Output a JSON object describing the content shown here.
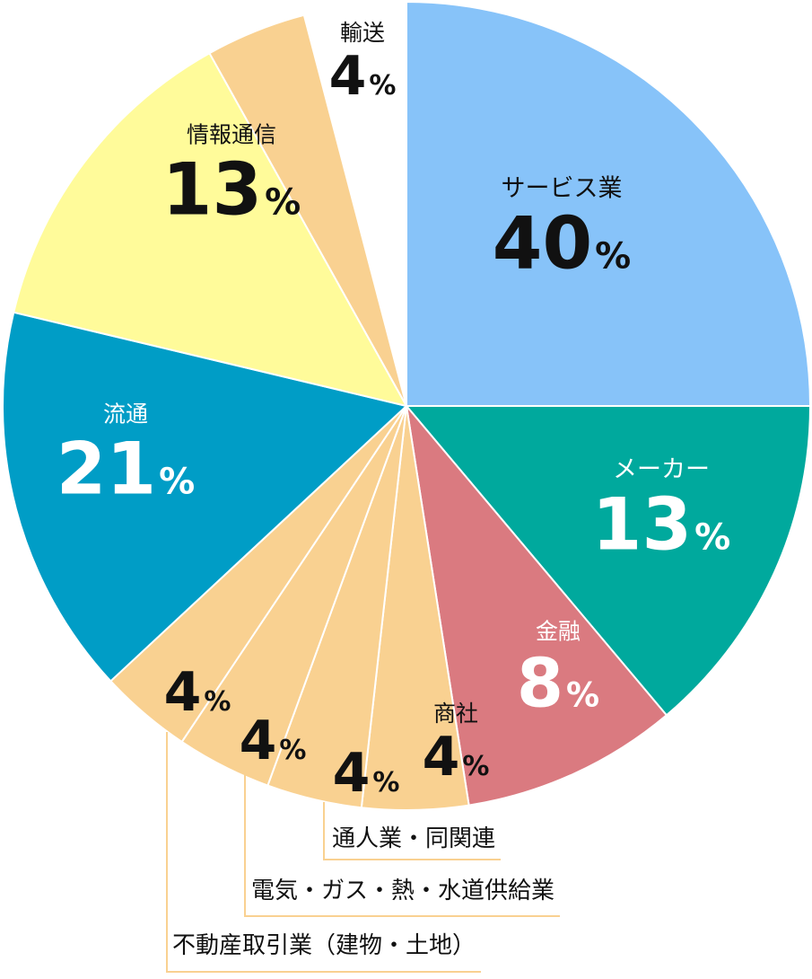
{
  "chart_data": {
    "type": "pie",
    "title": "",
    "unit": "%",
    "series": [
      {
        "values": [
          40,
          13,
          8,
          4,
          4,
          4,
          4,
          21,
          13,
          4
        ]
      }
    ],
    "categories": [
      "サービス業",
      "メーカー",
      "金融",
      "商社",
      "通人業・同関連",
      "電気・ガス・熱・水道供給業",
      "不動産取引業（建物・土地）",
      "流通",
      "情報通信",
      "輸送"
    ],
    "slices": [
      {
        "label": "サービス業",
        "value": 40,
        "color": "#87C3F9"
      },
      {
        "label": "メーカー",
        "value": 13,
        "color": "#00A99D"
      },
      {
        "label": "金融",
        "value": 8,
        "color": "#DA7A80"
      },
      {
        "label": "商社",
        "value": 4,
        "color": "#F9D191"
      },
      {
        "label": "通人業・同関連",
        "value": 4,
        "color": "#F9D191"
      },
      {
        "label": "電気・ガス・熱・水道供給業",
        "value": 4,
        "color": "#F9D191"
      },
      {
        "label": "不動産取引業（建物・土地）",
        "value": 4,
        "color": "#F9D191"
      },
      {
        "label": "流通",
        "value": 21,
        "color": "#009DC6"
      },
      {
        "label": "情報通信",
        "value": 13,
        "color": "#FFFB9A"
      },
      {
        "label": "輸送",
        "value": 4,
        "color": "#F9D191"
      }
    ]
  }
}
